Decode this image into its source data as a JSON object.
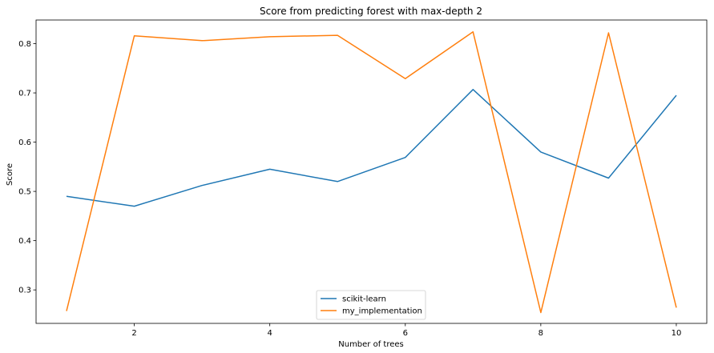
{
  "chart_data": {
    "type": "line",
    "title": "Score from predicting forest with max-depth 2",
    "xlabel": "Number of trees",
    "ylabel": "Score",
    "xlim": [
      0.55,
      10.45
    ],
    "ylim": [
      0.232,
      0.848
    ],
    "xticks": [
      2,
      4,
      6,
      8,
      10
    ],
    "yticks": [
      0.3,
      0.4,
      0.5,
      0.6,
      0.7,
      0.8
    ],
    "grid": false,
    "legend_position": "lower center",
    "x": [
      1,
      2,
      3,
      4,
      5,
      6,
      7,
      8,
      9,
      10
    ],
    "series": [
      {
        "name": "scikit-learn",
        "color": "#1f77b4",
        "values": [
          0.49,
          0.47,
          0.512,
          0.545,
          0.52,
          0.569,
          0.707,
          0.58,
          0.527,
          0.695
        ]
      },
      {
        "name": "my_implementation",
        "color": "#ff7f0e",
        "values": [
          0.257,
          0.816,
          0.806,
          0.814,
          0.817,
          0.729,
          0.824,
          0.254,
          0.822,
          0.264
        ]
      }
    ]
  }
}
